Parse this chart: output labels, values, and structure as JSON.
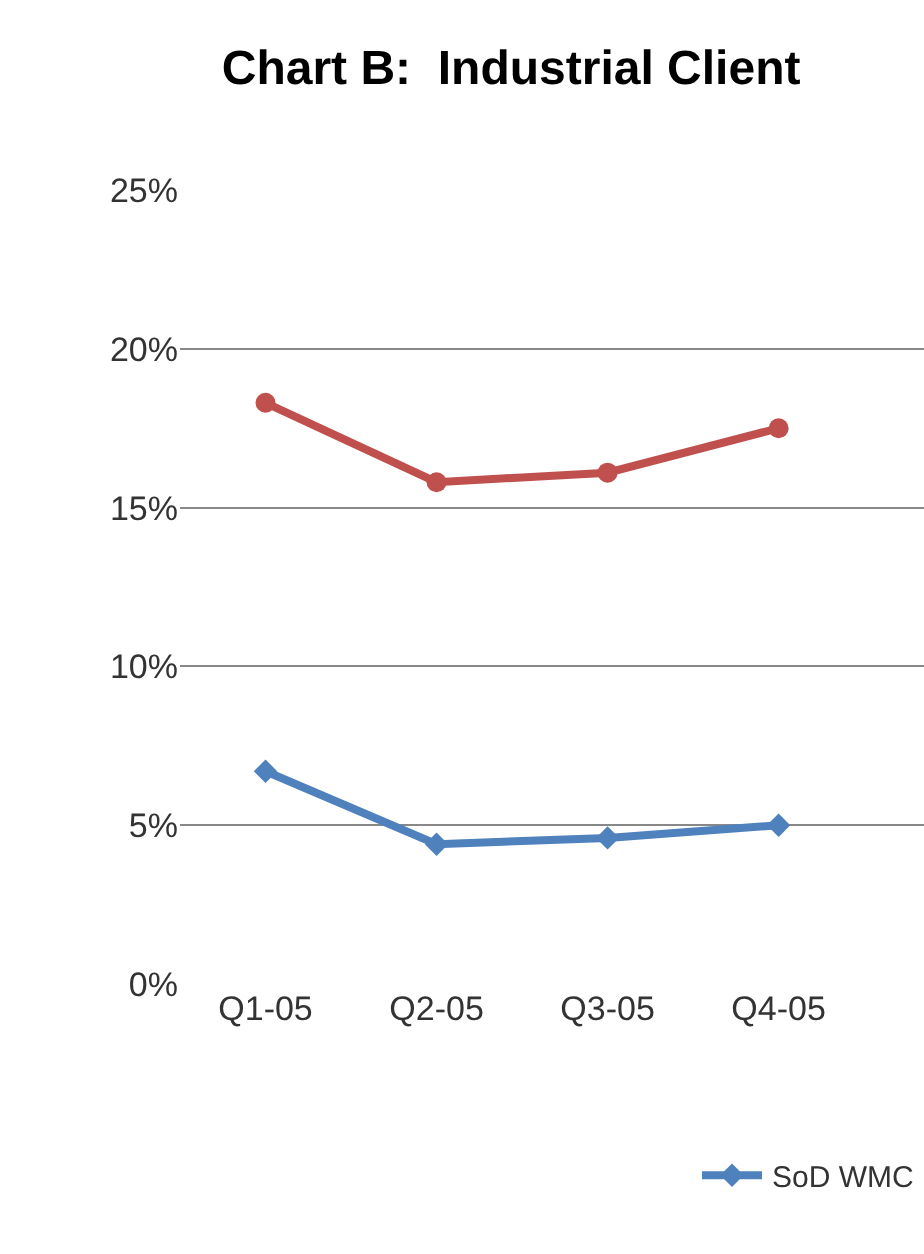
{
  "chart_data": {
    "type": "line",
    "title": "Chart B:  Industrial Client",
    "categories": [
      "Q1-05",
      "Q2-05",
      "Q3-05",
      "Q4-05"
    ],
    "series": [
      {
        "color": "#c0504d",
        "values": [
          18.3,
          15.8,
          16.1,
          17.5
        ],
        "marker": "circle"
      },
      {
        "name": "SoD WMC",
        "color": "#4f81bd",
        "values": [
          6.7,
          4.4,
          4.6,
          5.0
        ],
        "marker": "diamond"
      }
    ],
    "ylim": [
      0,
      25
    ],
    "yticks": [
      {
        "value": 0,
        "label": "0%"
      },
      {
        "value": 5,
        "label": "5%"
      },
      {
        "value": 10,
        "label": "10%"
      },
      {
        "value": 15,
        "label": "15%"
      },
      {
        "value": 20,
        "label": "20%"
      },
      {
        "value": 25,
        "label": "25%"
      }
    ],
    "grid": "y",
    "legend": "bottom right"
  }
}
